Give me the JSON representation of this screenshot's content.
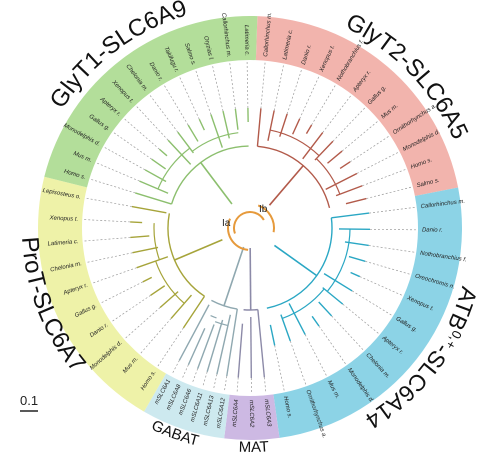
{
  "colors": {
    "glyt1": "#b3de9a",
    "glyt2": "#f2b4ad",
    "atb": "#8cd3e6",
    "prot": "#eef2a8",
    "gabat": "#cde9ef",
    "mat": "#cdb9e3",
    "branch_glyt1": "#8cbf6e",
    "branch_glyt2": "#b25a4a",
    "branch_atb": "#2aa7c4",
    "branch_prot": "#a6a43a",
    "branch_gabat": "#8fa8b0",
    "branch_mat": "#8c8aa8",
    "root": "#e69a3c",
    "dash": "#9a9a9a"
  },
  "groups": {
    "glyt1": "GlyT1-SLC6A9",
    "glyt2": "GlyT2-SLC6A5",
    "atb": "ATB",
    "atb_sup": "0,+",
    "atb_suffix": "-SLC6A14",
    "prot": "ProT-SLC6A7",
    "gabat": "GABAT",
    "mat": "MAT"
  },
  "nodes": {
    "ia": "Ia",
    "ib": "Ib"
  },
  "scale_bar": {
    "label": "0.1"
  },
  "leaves": {
    "glyt2": [
      "Callorhinchus m.",
      "Latimeria c.",
      "Danio r.",
      "Xenopus t.",
      "Nothobranchius f.",
      "Apteryx r.",
      "Gallus g.",
      "Mus m.",
      "Ornithorhynchus a.",
      "Monodelphis d.",
      "Homo s.",
      "Salmo s."
    ],
    "glyt1": [
      "Homo s.",
      "Mus m.",
      "Monodelphis d.",
      "Gallus g.",
      "Apteryx r.",
      "Xenopus t.",
      "Chelonia m.",
      "Danio r.",
      "Takifugu r.",
      "Salmo s.",
      "Oryzias l.",
      "Callorhinchus m.",
      "Latimeria c."
    ],
    "atb": [
      "Callorhinchus m.",
      "Danio r.",
      "Nothobranchius f.",
      "Oreochromis n.",
      "Xenopus t.",
      "Gallus g.",
      "Apteryx r.",
      "Chelonia m.",
      "Monodelphis d.",
      "Mus m.",
      "Ornithorhynchus a.",
      "Homo s."
    ],
    "prot": [
      "Homo s.",
      "Mus m.",
      "Monodelphis d.",
      "Danio r.",
      "Gallus g.",
      "Apteryx r.",
      "Chelonia m.",
      "Latimeria c.",
      "Xenopus t.",
      "Lepisosteus o."
    ],
    "gabat": [
      "mSLC6A12",
      "mSLC6A13",
      "mSLC6A11",
      "mSLC6A6",
      "mSLC6A8",
      "mSLC6A1"
    ],
    "mat": [
      "mSLC6A3",
      "mSLC6A2",
      "mSLC6A4"
    ]
  }
}
